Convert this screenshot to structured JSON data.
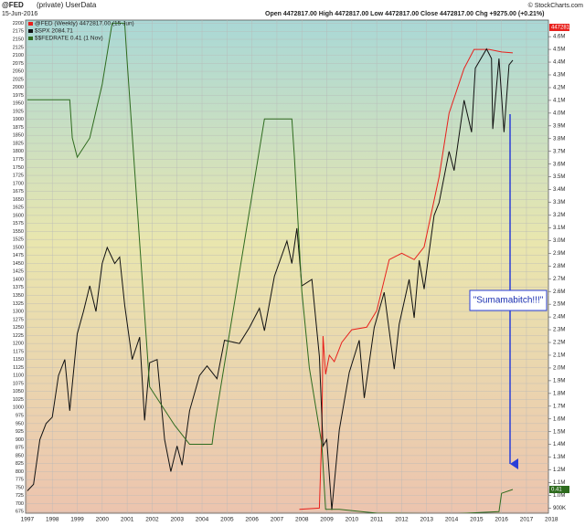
{
  "chart_data": {
    "type": "line",
    "title": "@FED",
    "subtitle": "(private) UserData",
    "date": "15-Jun-2016",
    "quote": "Open 4472817.00  High 4472817.00  Low 4472817.00  Close 4472817.00  Chg +9275.00 (+0.21%)",
    "credit": "© StockCharts.com",
    "annotation": "\"Sumamabitch!!!\"",
    "grid": true,
    "xlim": [
      1996.93,
      2018.1
    ],
    "xticks": [
      1997,
      1998,
      1999,
      2000,
      2001,
      2002,
      2003,
      2004,
      2005,
      2006,
      2007,
      2008,
      2009,
      2010,
      2011,
      2012,
      2013,
      2014,
      2015,
      2016,
      2017,
      2018
    ],
    "ylim": [
      670,
      2210
    ],
    "yticks": [
      675,
      700,
      725,
      750,
      775,
      800,
      825,
      850,
      875,
      900,
      925,
      950,
      975,
      1000,
      1025,
      1050,
      1075,
      1100,
      1125,
      1150,
      1175,
      1200,
      1225,
      1250,
      1275,
      1300,
      1325,
      1350,
      1375,
      1400,
      1425,
      1450,
      1475,
      1500,
      1525,
      1550,
      1575,
      1600,
      1625,
      1650,
      1675,
      1700,
      1725,
      1750,
      1775,
      1800,
      1825,
      1850,
      1875,
      1900,
      1925,
      1950,
      1975,
      2000,
      2025,
      2050,
      2075,
      2100,
      2125,
      2150,
      2175,
      2200
    ],
    "y2lim": [
      860000,
      4730000
    ],
    "y2ticks": [
      {
        "value": 900000,
        "label": "900K"
      },
      {
        "value": 1000000,
        "label": "1.0M"
      },
      {
        "value": 1100000,
        "label": "1.1M"
      },
      {
        "value": 1200000,
        "label": "1.2M"
      },
      {
        "value": 1300000,
        "label": "1.3M"
      },
      {
        "value": 1400000,
        "label": "1.4M"
      },
      {
        "value": 1500000,
        "label": "1.5M"
      },
      {
        "value": 1600000,
        "label": "1.6M"
      },
      {
        "value": 1700000,
        "label": "1.7M"
      },
      {
        "value": 1800000,
        "label": "1.8M"
      },
      {
        "value": 1900000,
        "label": "1.9M"
      },
      {
        "value": 2000000,
        "label": "2.0M"
      },
      {
        "value": 2100000,
        "label": "2.1M"
      },
      {
        "value": 2200000,
        "label": "2.2M"
      },
      {
        "value": 2300000,
        "label": "2.3M"
      },
      {
        "value": 2400000,
        "label": "2.4M"
      },
      {
        "value": 2500000,
        "label": "2.5M"
      },
      {
        "value": 2600000,
        "label": "2.6M"
      },
      {
        "value": 2700000,
        "label": "2.7M"
      },
      {
        "value": 2800000,
        "label": "2.8M"
      },
      {
        "value": 2900000,
        "label": "2.9M"
      },
      {
        "value": 3000000,
        "label": "3.0M"
      },
      {
        "value": 3100000,
        "label": "3.1M"
      },
      {
        "value": 3200000,
        "label": "3.2M"
      },
      {
        "value": 3300000,
        "label": "3.3M"
      },
      {
        "value": 3400000,
        "label": "3.4M"
      },
      {
        "value": 3500000,
        "label": "3.5M"
      },
      {
        "value": 3600000,
        "label": "3.6M"
      },
      {
        "value": 3700000,
        "label": "3.7M"
      },
      {
        "value": 3800000,
        "label": "3.8M"
      },
      {
        "value": 3900000,
        "label": "3.9M"
      },
      {
        "value": 4000000,
        "label": "4.0M"
      },
      {
        "value": 4100000,
        "label": "4.1M"
      },
      {
        "value": 4200000,
        "label": "4.2M"
      },
      {
        "value": 4300000,
        "label": "4.3M"
      },
      {
        "value": 4400000,
        "label": "4.4M"
      },
      {
        "value": 4500000,
        "label": "4.5M"
      },
      {
        "value": 4600000,
        "label": "4.6M"
      }
    ],
    "y3lim": [
      0.1,
      6.54
    ],
    "series": [
      {
        "name": "@FED (Weekly) 4472817.00 (15 Jun)",
        "color": "#e8201c",
        "axis": "y2",
        "x": [
          2007.9,
          2008.7,
          2008.8,
          2008.85,
          2008.95,
          2009.1,
          2009.3,
          2009.6,
          2010.0,
          2010.6,
          2011.0,
          2011.5,
          2012.0,
          2012.5,
          2012.9,
          2013.5,
          2013.9,
          2014.5,
          2014.9,
          2015.5,
          2016.0,
          2016.45
        ],
        "values": [
          890000,
          900000,
          1500000,
          2250000,
          1950000,
          2100000,
          2050000,
          2200000,
          2300000,
          2320000,
          2450000,
          2850000,
          2900000,
          2850000,
          2950000,
          3500000,
          4000000,
          4350000,
          4500000,
          4500000,
          4480000,
          4472817
        ]
      },
      {
        "name": "$SPX 2084.71",
        "color": "#111111",
        "axis": "y",
        "x": [
          1997.0,
          1997.25,
          1997.5,
          1997.75,
          1998.0,
          1998.25,
          1998.5,
          1998.7,
          1999.0,
          1999.25,
          1999.5,
          1999.75,
          2000.0,
          2000.2,
          2000.5,
          2000.7,
          2000.9,
          2001.2,
          2001.5,
          2001.7,
          2001.9,
          2002.2,
          2002.5,
          2002.75,
          2003.0,
          2003.2,
          2003.5,
          2003.9,
          2004.2,
          2004.6,
          2004.9,
          2005.5,
          2005.9,
          2006.3,
          2006.5,
          2006.9,
          2007.4,
          2007.6,
          2007.8,
          2008.0,
          2008.4,
          2008.7,
          2008.85,
          2009.0,
          2009.2,
          2009.5,
          2009.9,
          2010.3,
          2010.5,
          2010.9,
          2011.3,
          2011.7,
          2011.9,
          2012.3,
          2012.5,
          2012.7,
          2012.9,
          2013.3,
          2013.5,
          2013.9,
          2014.1,
          2014.5,
          2014.8,
          2014.95,
          2015.4,
          2015.6,
          2015.65,
          2015.9,
          2016.1,
          2016.3,
          2016.45
        ],
        "values": [
          740,
          760,
          900,
          950,
          970,
          1100,
          1150,
          990,
          1230,
          1300,
          1380,
          1300,
          1450,
          1500,
          1450,
          1470,
          1320,
          1150,
          1220,
          960,
          1140,
          1150,
          900,
          800,
          880,
          820,
          990,
          1100,
          1130,
          1090,
          1210,
          1200,
          1250,
          1310,
          1240,
          1410,
          1520,
          1450,
          1560,
          1380,
          1400,
          1160,
          880,
          900,
          680,
          930,
          1110,
          1210,
          1030,
          1250,
          1360,
          1120,
          1260,
          1400,
          1280,
          1460,
          1370,
          1600,
          1640,
          1800,
          1740,
          1960,
          1860,
          2060,
          2120,
          2090,
          1870,
          2090,
          1860,
          2070,
          2084.71
        ]
      },
      {
        "name": "$$FEDRATE 0.41 (1 Nov)",
        "color": "#2e6b1e",
        "axis": "y3",
        "x": [
          1997.0,
          1998.7,
          1998.8,
          1999.0,
          1999.5,
          2000.0,
          2000.4,
          2000.9,
          2001.0,
          2001.9,
          2002.9,
          2003.5,
          2004.4,
          2004.5,
          2006.5,
          2007.6,
          2007.7,
          2008.0,
          2008.3,
          2008.8,
          2008.95,
          2009.5,
          2011.0,
          2014.0,
          2015.9,
          2016.0,
          2016.45
        ],
        "values": [
          5.5,
          5.5,
          5.0,
          4.75,
          5.0,
          5.7,
          6.5,
          6.5,
          6.0,
          1.75,
          1.25,
          1.0,
          1.0,
          1.25,
          5.25,
          5.25,
          4.75,
          3.0,
          2.0,
          1.0,
          0.15,
          0.15,
          0.1,
          0.09,
          0.12,
          0.36,
          0.41
        ]
      }
    ]
  }
}
